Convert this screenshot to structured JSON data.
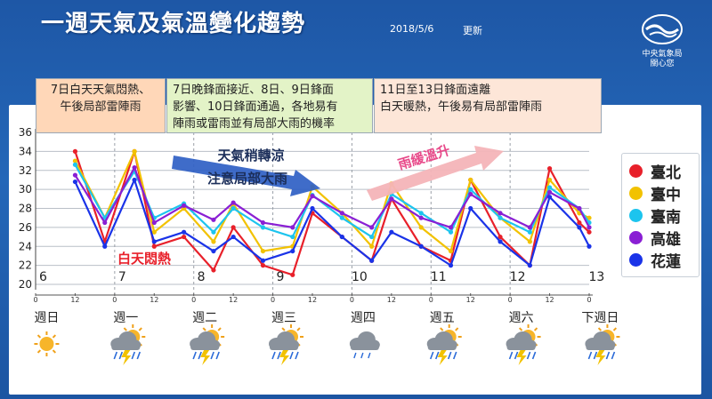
{
  "header": {
    "title": "一週天氣及氣溫變化趨勢",
    "date": "2018/5/6",
    "update_label": "更新",
    "logo_line1": "中央氣象局",
    "logo_line2": "關心您"
  },
  "annotations": [
    {
      "lines": [
        "7日白天天氣悶熱、",
        "午後局部雷陣雨"
      ]
    },
    {
      "lines": [
        "7日晚鋒面接近、8日、9日鋒面",
        "影響、10日鋒面通過，各地易有",
        "陣雨或雷雨並有局部大雨的機率"
      ]
    },
    {
      "lines": [
        "11日至13日鋒面遠離",
        "白天暖熱，午後易有局部雷陣雨"
      ]
    }
  ],
  "arrows": {
    "cooling_label": "天氣稍轉涼",
    "rain_label": "注意局部大雨",
    "warming_label": "雨緩溫升"
  },
  "callout": "白天悶熱",
  "days": [
    "週日",
    "週一",
    "週二",
    "週三",
    "週四",
    "週五",
    "週六",
    "下週日"
  ],
  "weather_icons": [
    "sunny-icon",
    "thunderstorm-icon",
    "thunderstorm-icon",
    "thunderstorm-icon",
    "cloudy-icon",
    "thunderstorm-icon",
    "thunderstorm-icon",
    "thunderstorm-icon"
  ],
  "colors": {
    "臺北": "#e8202a",
    "臺中": "#f2c200",
    "臺南": "#1cc4ee",
    "高雄": "#8a1fd4",
    "花蓮": "#1a33e8"
  },
  "chart_data": {
    "type": "line",
    "ylim": [
      20,
      36
    ],
    "yticks": [
      20,
      22,
      24,
      26,
      28,
      30,
      32,
      34,
      36
    ],
    "xlim": [
      0,
      168
    ],
    "x_tick_labels": [
      "0",
      "12",
      "0",
      "12",
      "0",
      "12",
      "0",
      "12",
      "0",
      "12",
      "0",
      "12",
      "0",
      "12",
      "0"
    ],
    "date_labels": [
      "6",
      "7",
      "8",
      "9",
      "10",
      "11",
      "12",
      "13"
    ],
    "x": [
      12,
      21,
      30,
      36,
      45,
      54,
      60,
      69,
      78,
      84,
      93,
      102,
      108,
      117,
      126,
      132,
      141,
      150,
      156,
      165,
      168
    ],
    "series": [
      {
        "name": "臺北",
        "values": [
          34.0,
          24.5,
          34.0,
          24.0,
          25.0,
          21.5,
          26.0,
          22.0,
          21.0,
          27.5,
          25.0,
          22.5,
          29.0,
          24.0,
          22.5,
          31.0,
          25.0,
          22.0,
          32.2,
          26.5,
          25.5
        ]
      },
      {
        "name": "臺中",
        "values": [
          33.0,
          27.0,
          34.0,
          25.5,
          28.0,
          24.5,
          28.5,
          23.5,
          24.0,
          30.3,
          27.5,
          24.0,
          30.6,
          26.0,
          23.5,
          31.0,
          27.0,
          24.5,
          31.0,
          27.5,
          27.0
        ]
      },
      {
        "name": "臺南",
        "values": [
          32.6,
          27.0,
          31.9,
          27.0,
          28.5,
          25.5,
          28.0,
          26.0,
          25.0,
          29.4,
          27.0,
          25.0,
          29.5,
          27.5,
          25.5,
          30.0,
          27.0,
          25.5,
          30.2,
          28.0,
          26.5
        ]
      },
      {
        "name": "高雄",
        "values": [
          31.5,
          26.5,
          32.3,
          26.5,
          28.3,
          26.8,
          28.6,
          26.5,
          26.0,
          29.3,
          27.5,
          26.0,
          29.0,
          27.0,
          26.0,
          29.5,
          27.5,
          26.0,
          29.7,
          28.0,
          26.0
        ]
      },
      {
        "name": "花蓮",
        "values": [
          30.8,
          24.0,
          31.0,
          24.5,
          25.5,
          23.5,
          25.0,
          22.5,
          23.5,
          28.0,
          25.0,
          22.5,
          25.5,
          24.0,
          22.0,
          28.0,
          24.5,
          22.0,
          29.2,
          26.0,
          24.0
        ]
      }
    ]
  }
}
